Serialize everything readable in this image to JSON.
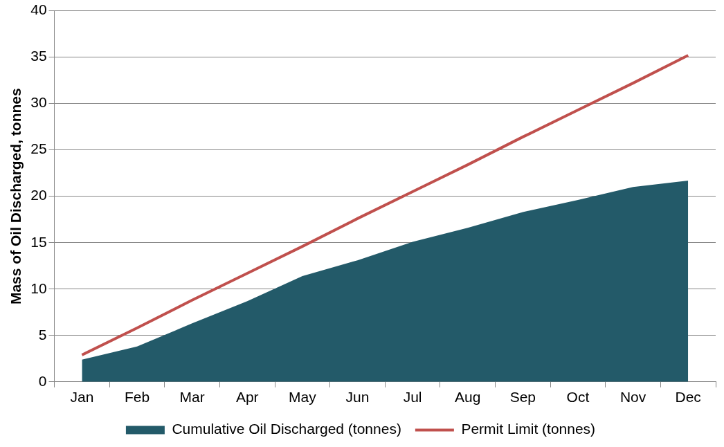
{
  "chart_data": {
    "type": "area",
    "ylabel": "Mass of Oil Discharged, tonnes",
    "categories": [
      "Jan",
      "Feb",
      "Mar",
      "Apr",
      "May",
      "Jun",
      "Jul",
      "Aug",
      "Sep",
      "Oct",
      "Nov",
      "Dec"
    ],
    "series": [
      {
        "name": "Cumulative Oil Discharged (tonnes)",
        "color": "#235a69",
        "values": [
          2.4,
          3.8,
          6.3,
          8.7,
          11.4,
          13.1,
          15.1,
          16.6,
          18.3,
          19.6,
          21.0,
          21.7
        ]
      },
      {
        "name": "Permit Limit (tonnes)",
        "type": "line",
        "color": "#c0504d",
        "values": [
          2.9,
          5.8,
          8.8,
          11.7,
          14.6,
          17.6,
          20.5,
          23.4,
          26.4,
          29.3,
          32.2,
          35.2
        ]
      }
    ],
    "ylim": [
      0,
      40
    ],
    "yticks": [
      0,
      5,
      10,
      15,
      20,
      25,
      30,
      35,
      40
    ],
    "grid": "y",
    "legend": "bottom",
    "marker": "none"
  }
}
